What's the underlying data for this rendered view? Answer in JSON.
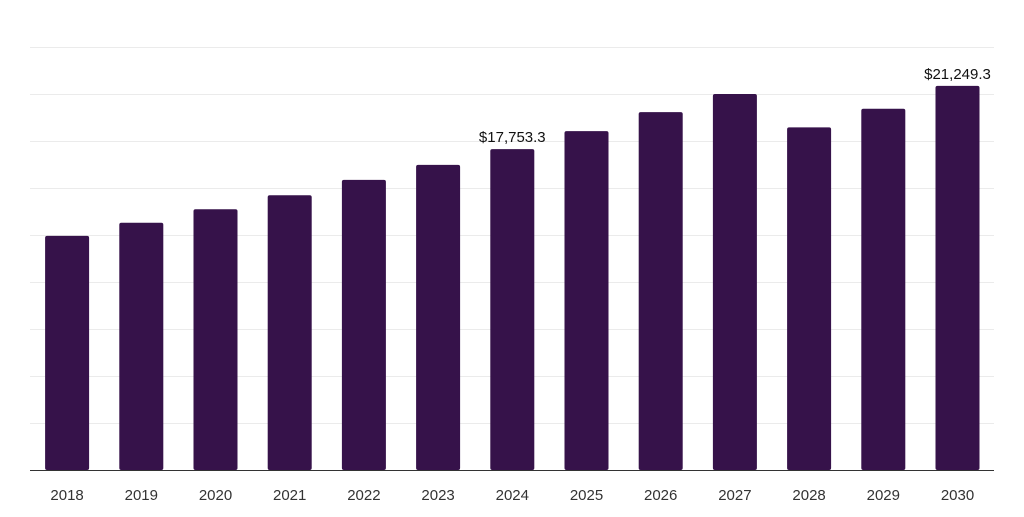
{
  "chart_data": {
    "type": "bar",
    "title": "",
    "xlabel": "",
    "ylabel": "",
    "unit": "$",
    "categories": [
      "2018",
      "2019",
      "2020",
      "2021",
      "2022",
      "2023",
      "2024",
      "2025",
      "2026",
      "2027",
      "2028",
      "2029",
      "2030"
    ],
    "values": [
      12950,
      13680,
      14420,
      15200,
      16050,
      16880,
      17753.3,
      18750,
      19800,
      20800,
      18950,
      19980,
      21249.3
    ],
    "data_labels": [
      {
        "index": 6,
        "text": "$17,753.3"
      },
      {
        "index": 12,
        "text": "$21,249.3"
      }
    ],
    "ylim": [
      0,
      26000
    ],
    "grid": true,
    "legend": "none",
    "colors": {
      "bar": "#36124a",
      "grid": "#ebebeb",
      "axis": "#333333",
      "tick_text": "#333333",
      "label_text": "#111111"
    }
  }
}
